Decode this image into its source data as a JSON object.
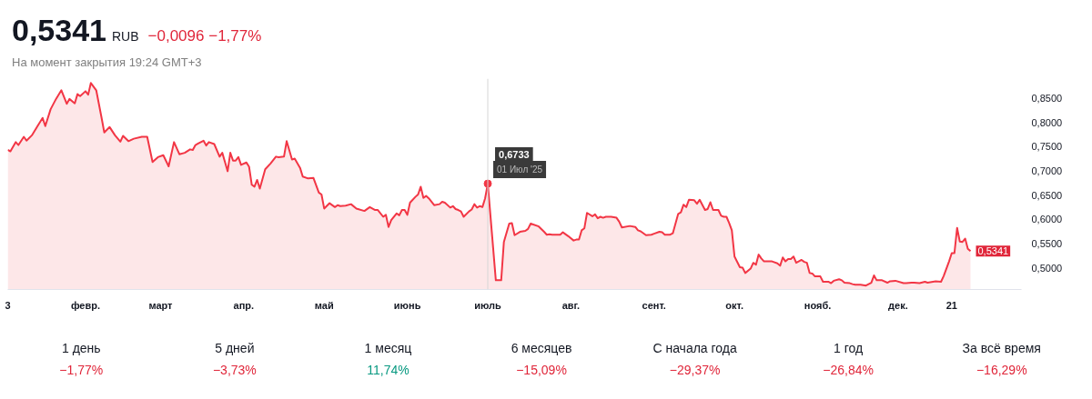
{
  "chart_data": {
    "type": "area",
    "title": "0,5341",
    "subtitle": "На момент закрытия 19:24 GMT+3",
    "annotations": [
      "RUB",
      "−0,0096 −1,77%",
      {
        "text": "0,6733\n01 Июл '25",
        "x": "2025-07-01",
        "y": 0.6733
      },
      {
        "text": "0,5341",
        "x": "2025-12-28",
        "y": 0.5341
      },
      "1 день",
      "−1,77%",
      "5 дней",
      "−3,73%",
      "1 месяц",
      "11,74%",
      "6 месяцев",
      "−15,09%",
      "С начала года",
      "−29,37%",
      "1 год",
      "−26,84%",
      "За всё время",
      "−16,29%"
    ],
    "ref_lines": [
      {
        "axis": "x",
        "value": "2025-07-01",
        "color": "#d6d6d6"
      }
    ],
    "xlim": [
      "2025-01-03",
      "2026-01-16"
    ],
    "xticks": [
      {
        "value": "2025-01-03",
        "label": "3"
      },
      {
        "value": "2025-02-01",
        "label": "февр."
      },
      {
        "value": "2025-03-01",
        "label": "март"
      },
      {
        "value": "2025-04-01",
        "label": "апр."
      },
      {
        "value": "2025-05-01",
        "label": "май"
      },
      {
        "value": "2025-06-01",
        "label": "июнь"
      },
      {
        "value": "2025-07-01",
        "label": "июль"
      },
      {
        "value": "2025-08-01",
        "label": "авг."
      },
      {
        "value": "2025-09-01",
        "label": "сент."
      },
      {
        "value": "2025-10-01",
        "label": "окт."
      },
      {
        "value": "2025-11-01",
        "label": "нояб."
      },
      {
        "value": "2025-12-01",
        "label": "дек."
      },
      {
        "value": "2025-12-21",
        "label": "21"
      }
    ],
    "ylim": [
      0.455,
      0.89
    ],
    "yticks": [
      {
        "value": 0.5,
        "label": "0,5000"
      },
      {
        "value": 0.55,
        "label": "0,5500"
      },
      {
        "value": 0.6,
        "label": "0,6000"
      },
      {
        "value": 0.65,
        "label": "0,6500"
      },
      {
        "value": 0.7,
        "label": "0,7000"
      },
      {
        "value": 0.75,
        "label": "0,7500"
      },
      {
        "value": 0.8,
        "label": "0,8000"
      },
      {
        "value": 0.85,
        "label": "0,8500"
      }
    ],
    "x": [
      "2025-01-03",
      "2025-01-04",
      "2025-01-06",
      "2025-01-07",
      "2025-01-09",
      "2025-01-10",
      "2025-01-12",
      "2025-01-14",
      "2025-01-16",
      "2025-01-17",
      "2025-01-19",
      "2025-01-21",
      "2025-01-23",
      "2025-01-25",
      "2025-01-26",
      "2025-01-28",
      "2025-01-29",
      "2025-01-30",
      "2025-02-01",
      "2025-02-02",
      "2025-02-03",
      "2025-02-05",
      "2025-02-07",
      "2025-02-08",
      "2025-02-10",
      "2025-02-12",
      "2025-02-14",
      "2025-02-15",
      "2025-02-17",
      "2025-02-19",
      "2025-02-22",
      "2025-02-24",
      "2025-02-26",
      "2025-02-28",
      "2025-03-02",
      "2025-03-04",
      "2025-03-06",
      "2025-03-08",
      "2025-03-10",
      "2025-03-12",
      "2025-03-13",
      "2025-03-14",
      "2025-03-15",
      "2025-03-17",
      "2025-03-18",
      "2025-03-19",
      "2025-03-21",
      "2025-03-23",
      "2025-03-24",
      "2025-03-25",
      "2025-03-26",
      "2025-03-27",
      "2025-03-28",
      "2025-03-29",
      "2025-03-30",
      "2025-03-31",
      "2025-04-02",
      "2025-04-03",
      "2025-04-04",
      "2025-04-05",
      "2025-04-06",
      "2025-04-07",
      "2025-04-09",
      "2025-04-11",
      "2025-04-13",
      "2025-04-14",
      "2025-04-16",
      "2025-04-17",
      "2025-04-19",
      "2025-04-20",
      "2025-04-22",
      "2025-04-23",
      "2025-04-25",
      "2025-04-27",
      "2025-04-29",
      "2025-04-30",
      "2025-05-01",
      "2025-05-03",
      "2025-05-05",
      "2025-05-06",
      "2025-05-07",
      "2025-05-09",
      "2025-05-11",
      "2025-05-13",
      "2025-05-16",
      "2025-05-18",
      "2025-05-20",
      "2025-05-21",
      "2025-05-23",
      "2025-05-24",
      "2025-05-25",
      "2025-05-26",
      "2025-05-28",
      "2025-05-29",
      "2025-05-30",
      "2025-05-31",
      "2025-06-01",
      "2025-06-02",
      "2025-06-04",
      "2025-06-05",
      "2025-06-06",
      "2025-06-07",
      "2025-06-08",
      "2025-06-09",
      "2025-06-11",
      "2025-06-13",
      "2025-06-14",
      "2025-06-15",
      "2025-06-17",
      "2025-06-18",
      "2025-06-19",
      "2025-06-20",
      "2025-06-21",
      "2025-06-22",
      "2025-06-24",
      "2025-06-25",
      "2025-06-26",
      "2025-06-27",
      "2025-06-28",
      "2025-06-29",
      "2025-06-30",
      "2025-07-01",
      "2025-07-04",
      "2025-07-06",
      "2025-07-07",
      "2025-07-09",
      "2025-07-10",
      "2025-07-11",
      "2025-07-13",
      "2025-07-15",
      "2025-07-16",
      "2025-07-17",
      "2025-07-20",
      "2025-07-22",
      "2025-07-23",
      "2025-07-24",
      "2025-07-25",
      "2025-07-28",
      "2025-07-29",
      "2025-07-31",
      "2025-08-02",
      "2025-08-03",
      "2025-08-04",
      "2025-08-05",
      "2025-08-06",
      "2025-08-07",
      "2025-08-09",
      "2025-08-10",
      "2025-08-11",
      "2025-08-12",
      "2025-08-13",
      "2025-08-14",
      "2025-08-16",
      "2025-08-18",
      "2025-08-19",
      "2025-08-20",
      "2025-08-23",
      "2025-08-25",
      "2025-08-26",
      "2025-08-27",
      "2025-08-29",
      "2025-08-31",
      "2025-09-01",
      "2025-09-03",
      "2025-09-04",
      "2025-09-05",
      "2025-09-07",
      "2025-09-08",
      "2025-09-10",
      "2025-09-11",
      "2025-09-12",
      "2025-09-13",
      "2025-09-14",
      "2025-09-16",
      "2025-09-17",
      "2025-09-18",
      "2025-09-20",
      "2025-09-21",
      "2025-09-22",
      "2025-09-23",
      "2025-09-25",
      "2025-09-26",
      "2025-09-27",
      "2025-09-28",
      "2025-09-29",
      "2025-09-30",
      "2025-10-01",
      "2025-10-03",
      "2025-10-04",
      "2025-10-05",
      "2025-10-07",
      "2025-10-08",
      "2025-10-09",
      "2025-10-10",
      "2025-10-11",
      "2025-10-12",
      "2025-10-15",
      "2025-10-17",
      "2025-10-18",
      "2025-10-19",
      "2025-10-20",
      "2025-10-21",
      "2025-10-22",
      "2025-10-23",
      "2025-10-24",
      "2025-10-26",
      "2025-10-27",
      "2025-10-28",
      "2025-10-29",
      "2025-10-30",
      "2025-10-31",
      "2025-11-02",
      "2025-11-03",
      "2025-11-05",
      "2025-11-06",
      "2025-11-07",
      "2025-11-09",
      "2025-11-10",
      "2025-11-11",
      "2025-11-13",
      "2025-11-14",
      "2025-11-15",
      "2025-11-17",
      "2025-11-19",
      "2025-11-20",
      "2025-11-21",
      "2025-11-22",
      "2025-11-23",
      "2025-11-25",
      "2025-11-27",
      "2025-11-28",
      "2025-11-30",
      "2025-12-03",
      "2025-12-04",
      "2025-12-06",
      "2025-12-07",
      "2025-12-09",
      "2025-12-11",
      "2025-12-12",
      "2025-12-14",
      "2025-12-15",
      "2025-12-17",
      "2025-12-18",
      "2025-12-20",
      "2025-12-21",
      "2025-12-22",
      "2025-12-23",
      "2025-12-24",
      "2025-12-25",
      "2025-12-26",
      "2025-12-27",
      "2025-12-28"
    ],
    "series": [
      {
        "color": "#f23645",
        "values": [
          0.743,
          0.74,
          0.759,
          0.753,
          0.77,
          0.762,
          0.773,
          0.791,
          0.809,
          0.792,
          0.827,
          0.848,
          0.866,
          0.838,
          0.848,
          0.839,
          0.858,
          0.854,
          0.864,
          0.857,
          0.881,
          0.866,
          0.809,
          0.779,
          0.79,
          0.773,
          0.76,
          0.772,
          0.761,
          0.766,
          0.77,
          0.77,
          0.718,
          0.728,
          0.732,
          0.709,
          0.759,
          0.734,
          0.737,
          0.744,
          0.743,
          0.753,
          0.756,
          0.762,
          0.752,
          0.759,
          0.755,
          0.729,
          0.737,
          0.718,
          0.699,
          0.737,
          0.721,
          0.721,
          0.728,
          0.712,
          0.717,
          0.708,
          0.671,
          0.667,
          0.681,
          0.663,
          0.703,
          0.715,
          0.729,
          0.728,
          0.729,
          0.761,
          0.723,
          0.725,
          0.706,
          0.688,
          0.684,
          0.685,
          0.655,
          0.651,
          0.622,
          0.633,
          0.625,
          0.629,
          0.627,
          0.628,
          0.631,
          0.622,
          0.617,
          0.625,
          0.619,
          0.619,
          0.605,
          0.609,
          0.584,
          0.598,
          0.612,
          0.608,
          0.619,
          0.619,
          0.609,
          0.634,
          0.646,
          0.651,
          0.667,
          0.644,
          0.648,
          0.643,
          0.629,
          0.631,
          0.636,
          0.634,
          0.624,
          0.627,
          0.621,
          0.619,
          0.616,
          0.605,
          0.616,
          0.62,
          0.631,
          0.624,
          0.627,
          0.625,
          0.643,
          0.6733,
          0.474,
          0.474,
          0.553,
          0.591,
          0.592,
          0.567,
          0.574,
          0.576,
          0.58,
          0.591,
          0.585,
          0.574,
          0.568,
          0.569,
          0.568,
          0.568,
          0.573,
          0.565,
          0.556,
          0.558,
          0.558,
          0.577,
          0.581,
          0.613,
          0.606,
          0.61,
          0.602,
          0.605,
          0.603,
          0.605,
          0.605,
          0.603,
          0.595,
          0.583,
          0.586,
          0.584,
          0.577,
          0.575,
          0.567,
          0.568,
          0.57,
          0.574,
          0.573,
          0.568,
          0.568,
          0.571,
          0.611,
          0.614,
          0.63,
          0.625,
          0.64,
          0.639,
          0.632,
          0.64,
          0.619,
          0.621,
          0.635,
          0.619,
          0.619,
          0.607,
          0.605,
          0.605,
          0.592,
          0.577,
          0.523,
          0.501,
          0.5,
          0.489,
          0.498,
          0.51,
          0.506,
          0.527,
          0.519,
          0.513,
          0.513,
          0.509,
          0.504,
          0.521,
          0.513,
          0.518,
          0.518,
          0.523,
          0.51,
          0.516,
          0.512,
          0.51,
          0.489,
          0.488,
          0.482,
          0.482,
          0.471,
          0.471,
          0.468,
          0.473,
          0.476,
          0.474,
          0.469,
          0.468,
          0.466,
          0.465,
          0.465,
          0.463,
          0.466,
          0.469,
          0.484,
          0.474,
          0.474,
          0.469,
          0.472,
          0.473,
          0.468,
          0.468,
          0.469,
          0.469,
          0.468,
          0.471,
          0.469,
          0.471,
          0.472,
          0.471,
          0.483,
          0.513,
          0.53,
          0.53,
          0.582,
          0.554,
          0.553,
          0.56,
          0.539,
          0.5341
        ]
      }
    ]
  }
}
